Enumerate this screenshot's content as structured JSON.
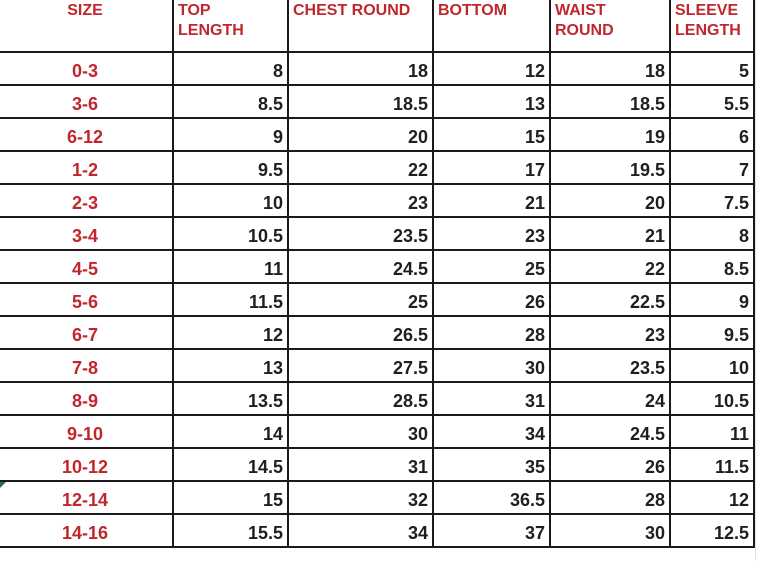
{
  "colors": {
    "header_text": "#c0272d",
    "size_text": "#c0272d",
    "value_text": "#1f1f1f",
    "border": "#1a1a1a"
  },
  "headers": [
    {
      "line1": "SIZE",
      "line2": ""
    },
    {
      "line1": "TOP",
      "line2": "LENGTH"
    },
    {
      "line1": "CHEST ROUND",
      "line2": ""
    },
    {
      "line1": "BOTTOM",
      "line2": ""
    },
    {
      "line1": "WAIST",
      "line2": "ROUND"
    },
    {
      "line1": "SLEEVE",
      "line2": "LENGTH"
    }
  ],
  "rows": [
    [
      "0-3",
      "8",
      "18",
      "12",
      "18",
      "5"
    ],
    [
      "3-6",
      "8.5",
      "18.5",
      "13",
      "18.5",
      "5.5"
    ],
    [
      "6-12",
      "9",
      "20",
      "15",
      "19",
      "6"
    ],
    [
      "1-2",
      "9.5",
      "22",
      "17",
      "19.5",
      "7"
    ],
    [
      "2-3",
      "10",
      "23",
      "21",
      "20",
      "7.5"
    ],
    [
      "3-4",
      "10.5",
      "23.5",
      "23",
      "21",
      "8"
    ],
    [
      "4-5",
      "11",
      "24.5",
      "25",
      "22",
      "8.5"
    ],
    [
      "5-6",
      "11.5",
      "25",
      "26",
      "22.5",
      "9"
    ],
    [
      "6-7",
      "12",
      "26.5",
      "28",
      "23",
      "9.5"
    ],
    [
      "7-8",
      "13",
      "27.5",
      "30",
      "23.5",
      "10"
    ],
    [
      "8-9",
      "13.5",
      "28.5",
      "31",
      "24",
      "10.5"
    ],
    [
      "9-10",
      "14",
      "30",
      "34",
      "24.5",
      "11"
    ],
    [
      "10-12",
      "14.5",
      "31",
      "35",
      "26",
      "11.5"
    ],
    [
      "12-14",
      "15",
      "32",
      "36.5",
      "28",
      "12"
    ],
    [
      "14-16",
      "15.5",
      "34",
      "37",
      "30",
      "12.5"
    ]
  ]
}
